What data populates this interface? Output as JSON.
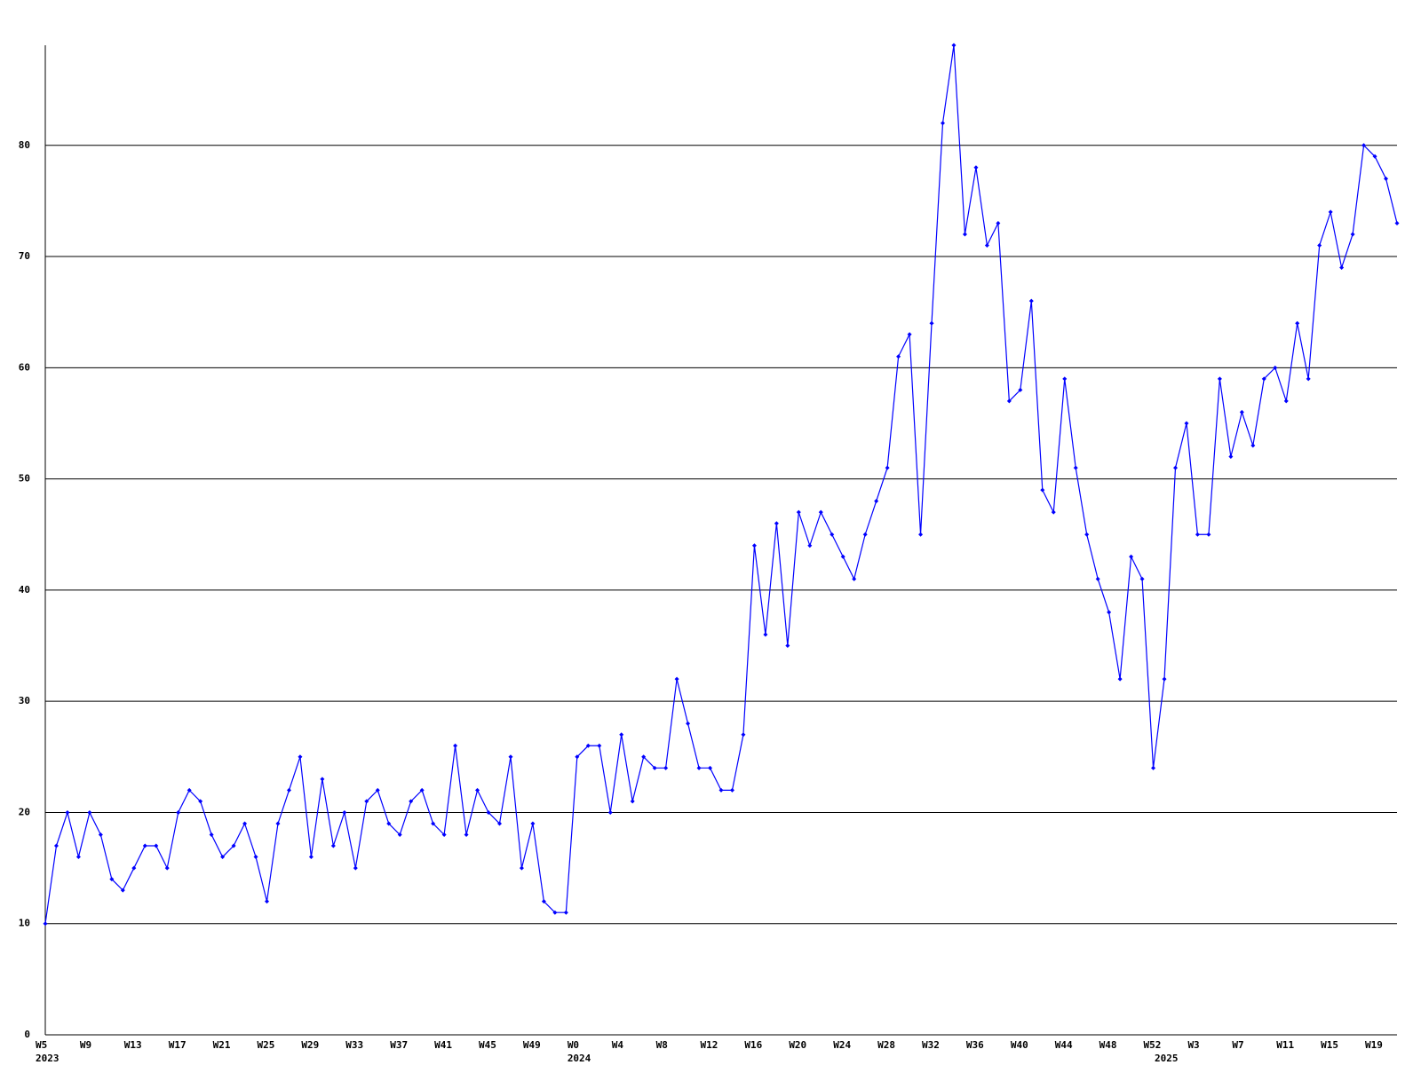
{
  "chart_data": {
    "type": "line",
    "categories": [
      "W5",
      null,
      null,
      null,
      "W9",
      null,
      null,
      null,
      "W13",
      null,
      null,
      null,
      "W17",
      null,
      null,
      null,
      "W21",
      null,
      null,
      null,
      "W25",
      null,
      null,
      null,
      "W29",
      null,
      null,
      null,
      "W33",
      null,
      null,
      null,
      "W37",
      null,
      null,
      null,
      "W41",
      null,
      null,
      null,
      "W45",
      null,
      null,
      null,
      "W49",
      null,
      null,
      null,
      "W0",
      null,
      null,
      null,
      "W4",
      null,
      null,
      null,
      "W8",
      null,
      null,
      null,
      "W12",
      null,
      null,
      null,
      "W16",
      null,
      null,
      null,
      "W20",
      null,
      null,
      null,
      "W24",
      null,
      null,
      null,
      "W28",
      null,
      null,
      null,
      "W32",
      null,
      null,
      null,
      "W36",
      null,
      null,
      null,
      "W40",
      null,
      null,
      null,
      "W44",
      null,
      null,
      null,
      "W48",
      null,
      null,
      null,
      "W52",
      null,
      null,
      null,
      "W3",
      null,
      null,
      null,
      "W7",
      null,
      null,
      null,
      "W11",
      null,
      null,
      null,
      "W15",
      null,
      null,
      null,
      "W19",
      null,
      null
    ],
    "years": [
      "2023",
      null,
      null,
      null,
      null,
      null,
      null,
      null,
      null,
      null,
      null,
      null,
      null,
      null,
      null,
      null,
      null,
      null,
      null,
      null,
      null,
      null,
      null,
      null,
      null,
      null,
      null,
      null,
      null,
      null,
      null,
      null,
      null,
      null,
      null,
      null,
      null,
      null,
      null,
      null,
      null,
      null,
      null,
      null,
      null,
      null,
      null,
      null,
      "2024",
      null,
      null,
      null,
      null,
      null,
      null,
      null,
      null,
      null,
      null,
      null,
      null,
      null,
      null,
      null,
      null,
      null,
      null,
      null,
      null,
      null,
      null,
      null,
      null,
      null,
      null,
      null,
      null,
      null,
      null,
      null,
      null,
      null,
      null,
      null,
      null,
      null,
      null,
      null,
      null,
      null,
      null,
      null,
      null,
      null,
      null,
      null,
      null,
      null,
      null,
      null,
      null,
      "2025",
      null,
      null,
      null,
      null,
      null,
      null,
      null,
      null,
      null,
      null,
      null,
      null,
      null,
      null,
      null,
      null,
      null,
      null,
      null,
      null,
      null
    ],
    "values": [
      10,
      17,
      20,
      16,
      20,
      18,
      14,
      13,
      15,
      17,
      17,
      15,
      20,
      22,
      21,
      18,
      16,
      17,
      19,
      16,
      12,
      19,
      22,
      25,
      16,
      23,
      17,
      20,
      15,
      21,
      22,
      19,
      18,
      21,
      22,
      19,
      18,
      26,
      18,
      22,
      20,
      19,
      25,
      15,
      19,
      12,
      11,
      11,
      25,
      26,
      26,
      20,
      27,
      21,
      25,
      24,
      24,
      32,
      28,
      24,
      24,
      22,
      22,
      27,
      44,
      36,
      46,
      35,
      47,
      44,
      47,
      45,
      43,
      41,
      45,
      48,
      51,
      61,
      63,
      45,
      64,
      82,
      89,
      72,
      78,
      71,
      73,
      57,
      58,
      66,
      49,
      47,
      59,
      51,
      45,
      41,
      38,
      32,
      43,
      41,
      24,
      32,
      51,
      55,
      45,
      45,
      59,
      52,
      56,
      53,
      59,
      60,
      57,
      64,
      59,
      71,
      74,
      69,
      72,
      80,
      79,
      77,
      73
    ],
    "color": "#0000ff",
    "ylim": [
      0,
      89
    ],
    "yticks": [
      0,
      10,
      20,
      30,
      40,
      50,
      60,
      70,
      80
    ],
    "grid": true
  }
}
